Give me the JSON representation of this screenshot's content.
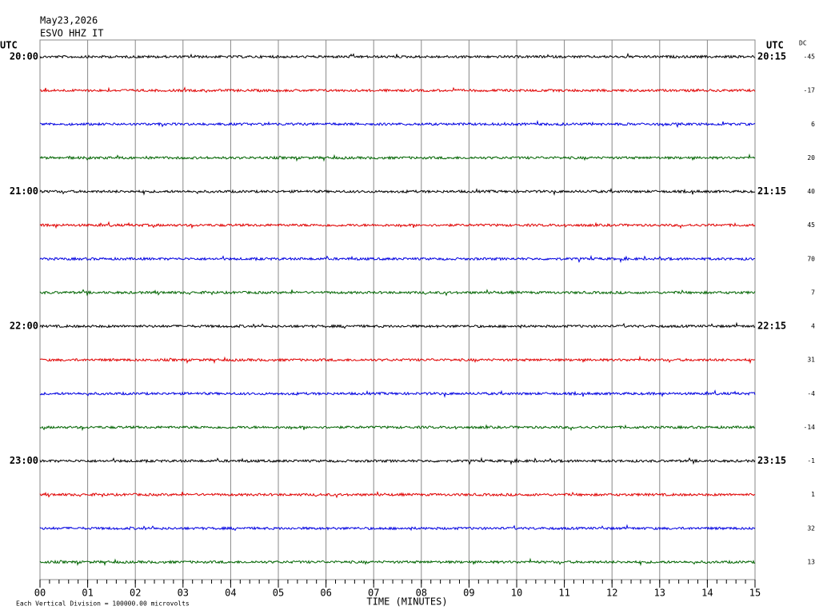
{
  "chart_data": {
    "type": "helicorder",
    "title": "May23,2026",
    "subtitle": "ESVO HHZ IT",
    "left_axis_label": "UTC",
    "right_axis_label": "UTC",
    "dc_label": "DC",
    "x_label": "TIME (MINUTES)",
    "note": "Each Vertical Division = 100000.00 microvolts",
    "xlim": [
      0,
      15
    ],
    "xticks": [
      {
        "value": 0,
        "label": "00"
      },
      {
        "value": 1,
        "label": "01"
      },
      {
        "value": 2,
        "label": "02"
      },
      {
        "value": 3,
        "label": "03"
      },
      {
        "value": 4,
        "label": "04"
      },
      {
        "value": 5,
        "label": "05"
      },
      {
        "value": 6,
        "label": "06"
      },
      {
        "value": 7,
        "label": "07"
      },
      {
        "value": 8,
        "label": "08"
      },
      {
        "value": 9,
        "label": "09"
      },
      {
        "value": 10,
        "label": "10"
      },
      {
        "value": 11,
        "label": "11"
      },
      {
        "value": 12,
        "label": "12"
      },
      {
        "value": 13,
        "label": "13"
      },
      {
        "value": 14,
        "label": "14"
      },
      {
        "value": 15,
        "label": "15"
      }
    ],
    "grid": true,
    "trace_colors": [
      "#000000",
      "#e00000",
      "#0000e0",
      "#006400"
    ],
    "rows": [
      {
        "start": "20:00",
        "end": "20:15",
        "dc": -45
      },
      {
        "start": null,
        "end": null,
        "dc": -17
      },
      {
        "start": null,
        "end": null,
        "dc": 6
      },
      {
        "start": null,
        "end": null,
        "dc": 20
      },
      {
        "start": "21:00",
        "end": "21:15",
        "dc": 40
      },
      {
        "start": null,
        "end": null,
        "dc": 45
      },
      {
        "start": null,
        "end": null,
        "dc": 70
      },
      {
        "start": null,
        "end": null,
        "dc": 7
      },
      {
        "start": "22:00",
        "end": "22:15",
        "dc": 4
      },
      {
        "start": null,
        "end": null,
        "dc": 31
      },
      {
        "start": null,
        "end": null,
        "dc": -4
      },
      {
        "start": null,
        "end": null,
        "dc": -14
      },
      {
        "start": "23:00",
        "end": "23:15",
        "dc": -1
      },
      {
        "start": null,
        "end": null,
        "dc": 1
      },
      {
        "start": null,
        "end": null,
        "dc": 32
      },
      {
        "start": null,
        "end": null,
        "dc": 13
      }
    ]
  }
}
